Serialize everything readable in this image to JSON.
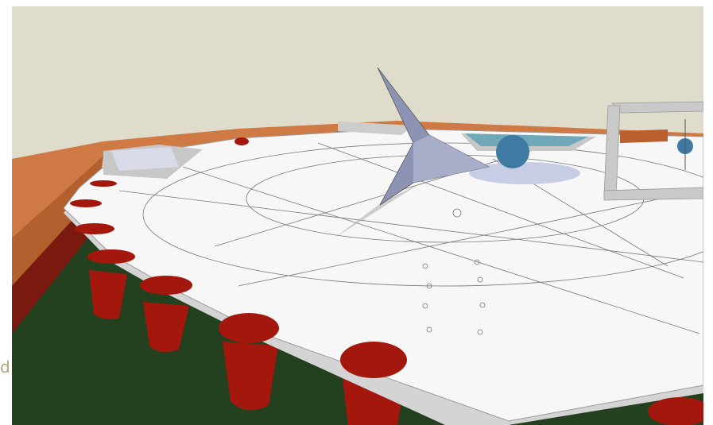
{
  "caption": "d"
}
